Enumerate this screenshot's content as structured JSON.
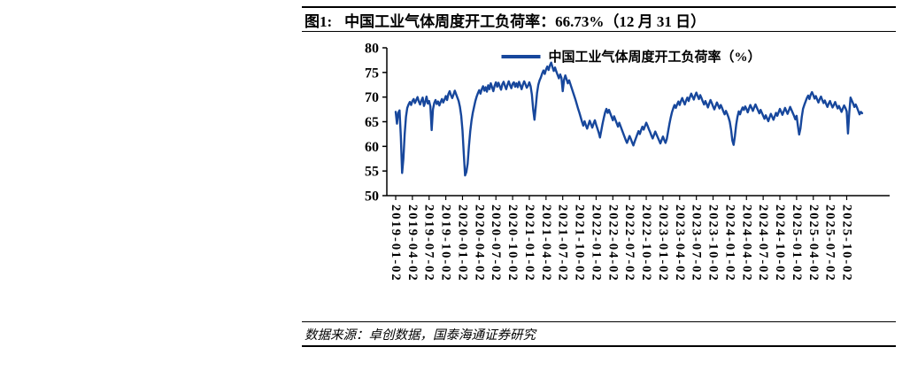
{
  "figure": {
    "label": "图1:",
    "title": "中国工业气体周度开工负荷率：66.73%（12 月 31 日）",
    "source": "数据来源：卓创数据，国泰海通证券研究"
  },
  "chart_data": {
    "type": "line",
    "title": "中国工业气体周度开工负荷率：66.73%（12 月 31 日）",
    "latest_value": 66.73,
    "latest_value_date": "12 月 31 日",
    "legend_position": "top-center",
    "grid": false,
    "ylim": [
      50,
      80
    ],
    "yticks": [
      50,
      55,
      60,
      65,
      70,
      75,
      80
    ],
    "x_start": "2019-01-02",
    "x_interval": "weekly",
    "xtick_labels": [
      "2019-01-02",
      "2019-04-02",
      "2019-07-02",
      "2019-10-02",
      "2020-01-02",
      "2020-04-02",
      "2020-07-02",
      "2020-10-02",
      "2021-01-02",
      "2021-04-02",
      "2021-07-02",
      "2021-10-02",
      "2022-01-02",
      "2022-04-02",
      "2022-07-02",
      "2022-10-02",
      "2023-01-02",
      "2023-04-02",
      "2023-07-02",
      "2023-10-02",
      "2024-01-02",
      "2024-04-02",
      "2024-07-02",
      "2024-10-02",
      "2025-01-02",
      "2025-04-02",
      "2025-07-02",
      "2025-10-02"
    ],
    "series": [
      {
        "name": "中国工业气体周度开工负荷率（%）",
        "color": "#17479C",
        "values": [
          67.0,
          64.6,
          66.8,
          67.3,
          62.0,
          54.6,
          57.5,
          62.5,
          66.0,
          67.8,
          68.5,
          69.0,
          68.4,
          69.2,
          69.6,
          68.8,
          69.4,
          70.0,
          69.1,
          68.5,
          69.3,
          69.9,
          68.2,
          69.0,
          70.1,
          68.7,
          69.2,
          68.1,
          63.3,
          67.5,
          68.8,
          69.4,
          68.6,
          69.1,
          68.3,
          69.0,
          69.6,
          68.9,
          69.5,
          70.2,
          69.4,
          70.6,
          71.2,
          70.4,
          69.8,
          70.5,
          71.3,
          70.6,
          69.9,
          69.2,
          68.0,
          66.2,
          63.2,
          58.5,
          54.1,
          54.8,
          56.5,
          60.0,
          63.0,
          65.2,
          66.8,
          68.0,
          69.2,
          70.1,
          70.8,
          71.4,
          70.7,
          71.6,
          72.2,
          71.3,
          72.0,
          71.1,
          72.4,
          71.6,
          72.8,
          72.0,
          71.2,
          72.3,
          73.0,
          72.1,
          72.9,
          72.2,
          71.5,
          72.6,
          73.1,
          72.3,
          71.6,
          72.5,
          73.2,
          72.4,
          71.8,
          72.7,
          73.0,
          72.1,
          72.8,
          72.0,
          73.1,
          72.4,
          71.6,
          72.5,
          73.2,
          72.6,
          71.9,
          72.3,
          73.0,
          72.2,
          70.5,
          67.5,
          65.4,
          68.0,
          70.8,
          72.5,
          73.4,
          74.0,
          74.8,
          75.4,
          74.7,
          75.6,
          76.2,
          75.5,
          76.4,
          77.0,
          76.1,
          75.3,
          76.0,
          75.2,
          74.5,
          73.8,
          74.6,
          73.9,
          71.2,
          73.5,
          74.4,
          73.6,
          72.8,
          73.4,
          72.6,
          71.8,
          71.0,
          70.2,
          69.4,
          68.5,
          67.6,
          66.8,
          65.9,
          65.0,
          64.2,
          65.1,
          64.3,
          63.6,
          64.4,
          65.2,
          64.5,
          63.8,
          64.6,
          65.3,
          64.4,
          63.6,
          62.8,
          61.8,
          63.2,
          64.6,
          65.8,
          66.9,
          67.6,
          66.8,
          67.4,
          66.7,
          66.0,
          65.3,
          66.1,
          65.4,
          64.7,
          64.0,
          64.8,
          64.1,
          63.4,
          62.7,
          62.0,
          61.3,
          60.7,
          61.4,
          62.1,
          61.5,
          60.8,
          60.2,
          61.0,
          61.7,
          62.4,
          63.1,
          62.5,
          63.3,
          64.0,
          63.4,
          64.1,
          64.8,
          64.2,
          63.5,
          62.9,
          62.2,
          61.6,
          62.3,
          63.0,
          62.4,
          61.8,
          61.2,
          60.6,
          61.3,
          62.0,
          61.3,
          60.7,
          61.5,
          63.0,
          64.5,
          65.8,
          66.9,
          67.7,
          68.4,
          67.8,
          68.5,
          69.1,
          68.4,
          69.2,
          69.8,
          69.1,
          68.5,
          69.3,
          69.9,
          69.2,
          70.0,
          70.7,
          70.1,
          69.5,
          70.3,
          70.9,
          70.2,
          69.6,
          70.4,
          69.8,
          69.1,
          68.5,
          69.2,
          68.6,
          67.9,
          68.7,
          69.4,
          68.8,
          68.1,
          67.5,
          68.2,
          68.9,
          68.3,
          67.7,
          68.4,
          67.8,
          67.1,
          66.5,
          67.2,
          66.6,
          65.9,
          65.0,
          63.4,
          61.2,
          60.3,
          62.1,
          64.4,
          66.0,
          67.1,
          66.5,
          67.3,
          67.9,
          67.4,
          68.1,
          67.6,
          66.9,
          67.7,
          68.4,
          67.8,
          67.2,
          67.9,
          68.5,
          67.9,
          67.3,
          66.7,
          67.4,
          66.8,
          66.2,
          65.6,
          66.3,
          65.7,
          65.1,
          65.9,
          66.6,
          66.0,
          65.4,
          66.1,
          66.8,
          66.2,
          66.9,
          67.6,
          67.0,
          66.4,
          67.1,
          67.8,
          67.2,
          66.6,
          67.3,
          68.0,
          67.4,
          66.8,
          66.2,
          65.5,
          66.2,
          64.2,
          62.4,
          63.6,
          65.9,
          67.6,
          68.4,
          69.1,
          69.8,
          70.3,
          69.6,
          70.5,
          71.0,
          70.4,
          69.7,
          70.2,
          69.5,
          68.9,
          69.6,
          70.1,
          69.4,
          68.8,
          69.3,
          68.6,
          68.0,
          68.7,
          69.2,
          68.5,
          67.9,
          68.4,
          69.0,
          68.3,
          67.7,
          68.2,
          67.6,
          67.0,
          67.7,
          68.3,
          67.8,
          67.1,
          62.6,
          66.8,
          69.9,
          69.3,
          68.7,
          68.0,
          68.5,
          67.9,
          67.2,
          66.5,
          67.0,
          66.73
        ]
      }
    ]
  }
}
